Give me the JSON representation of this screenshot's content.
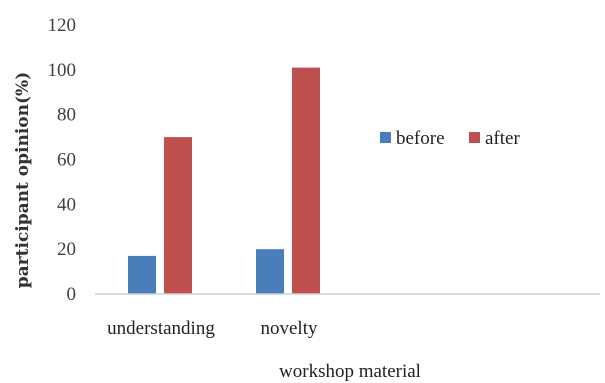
{
  "chart_data": {
    "type": "bar",
    "categories": [
      "understanding",
      "novelty"
    ],
    "series": [
      {
        "name": "before",
        "values": [
          17,
          20
        ],
        "color": "#4a7ebb"
      },
      {
        "name": "after",
        "values": [
          70,
          101
        ],
        "color": "#c0504d"
      }
    ],
    "title": "",
    "xlabel": "workshop material",
    "ylabel": "participant opinion(%)",
    "ylim": [
      0,
      120
    ],
    "yticks": [
      0,
      20,
      40,
      60,
      80,
      100,
      120
    ],
    "grid": false,
    "legend_position": "right"
  }
}
